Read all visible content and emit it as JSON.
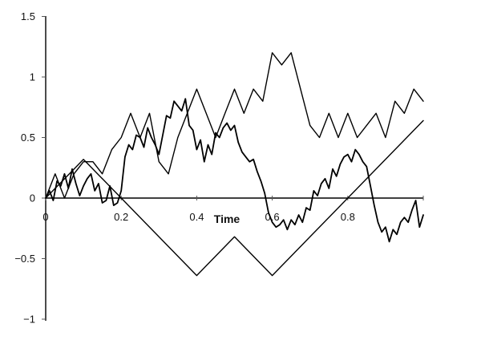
{
  "chart_data": {
    "type": "line",
    "xlabel": "Time",
    "ylabel": "",
    "xlim": [
      0,
      1
    ],
    "ylim": [
      -1,
      1.5
    ],
    "x_ticks": [
      0,
      0.2,
      0.4,
      0.6,
      0.8
    ],
    "x_tick_labels": [
      "0",
      "0.2",
      "0.4",
      "0.6",
      "0.8"
    ],
    "y_ticks": [
      1.5,
      1,
      0.5,
      0,
      -0.5,
      -1
    ],
    "y_tick_labels": [
      "1.5",
      "1",
      "0.5",
      "0",
      "−0.5",
      "−1"
    ],
    "grid": false,
    "legend": "none",
    "series": [
      {
        "style": "piecewise-linear",
        "stroke_width": 1.4,
        "x": [
          0,
          0.1,
          0.4,
          0.5,
          0.6,
          1
        ],
        "y": [
          0,
          0.32,
          -0.64,
          -0.32,
          -0.64,
          0.64
        ]
      },
      {
        "style": "piecewise-linear",
        "stroke_width": 1.4,
        "x": [
          0,
          0.025,
          0.05,
          0.075,
          0.1,
          0.125,
          0.15,
          0.175,
          0.2,
          0.225,
          0.25,
          0.275,
          0.3,
          0.325,
          0.35,
          0.375,
          0.4,
          0.425,
          0.45,
          0.475,
          0.5,
          0.525,
          0.55,
          0.575,
          0.6,
          0.625,
          0.65,
          0.675,
          0.7,
          0.725,
          0.75,
          0.775,
          0.8,
          0.825,
          0.85,
          0.875,
          0.9,
          0.925,
          0.95,
          0.975,
          1
        ],
        "y": [
          0,
          0.2,
          0,
          0.2,
          0.3,
          0.3,
          0.2,
          0.4,
          0.5,
          0.7,
          0.5,
          0.7,
          0.3,
          0.2,
          0.5,
          0.7,
          0.9,
          0.7,
          0.5,
          0.7,
          0.9,
          0.7,
          0.9,
          0.8,
          1.2,
          1.1,
          1.2,
          0.9,
          0.6,
          0.5,
          0.7,
          0.5,
          0.7,
          0.5,
          0.6,
          0.7,
          0.5,
          0.8,
          0.7,
          0.9,
          0.8
        ]
      },
      {
        "style": "rough-path",
        "stroke_width": 1.8,
        "x": [
          0,
          0.01,
          0.02,
          0.03,
          0.04,
          0.05,
          0.06,
          0.07,
          0.08,
          0.09,
          0.1,
          0.11,
          0.12,
          0.13,
          0.14,
          0.15,
          0.16,
          0.17,
          0.18,
          0.19,
          0.2,
          0.21,
          0.22,
          0.23,
          0.24,
          0.25,
          0.26,
          0.27,
          0.28,
          0.29,
          0.3,
          0.31,
          0.32,
          0.33,
          0.34,
          0.35,
          0.36,
          0.37,
          0.38,
          0.39,
          0.4,
          0.41,
          0.42,
          0.43,
          0.44,
          0.45,
          0.46,
          0.47,
          0.48,
          0.49,
          0.5,
          0.51,
          0.52,
          0.53,
          0.54,
          0.55,
          0.56,
          0.57,
          0.58,
          0.59,
          0.6,
          0.61,
          0.62,
          0.63,
          0.64,
          0.65,
          0.66,
          0.67,
          0.68,
          0.69,
          0.7,
          0.71,
          0.72,
          0.73,
          0.74,
          0.75,
          0.76,
          0.77,
          0.78,
          0.79,
          0.8,
          0.81,
          0.82,
          0.83,
          0.84,
          0.85,
          0.86,
          0.87,
          0.88,
          0.89,
          0.9,
          0.91,
          0.92,
          0.93,
          0.94,
          0.95,
          0.96,
          0.97,
          0.98,
          0.99,
          1
        ],
        "y": [
          0,
          0.06,
          -0.02,
          0.14,
          0.1,
          0.2,
          0.08,
          0.24,
          0.12,
          0.02,
          0.1,
          0.16,
          0.2,
          0.06,
          0.12,
          -0.04,
          -0.02,
          0.1,
          -0.06,
          -0.04,
          0.06,
          0.34,
          0.44,
          0.4,
          0.52,
          0.5,
          0.42,
          0.58,
          0.5,
          0.44,
          0.36,
          0.52,
          0.68,
          0.66,
          0.8,
          0.76,
          0.72,
          0.82,
          0.6,
          0.56,
          0.4,
          0.48,
          0.3,
          0.44,
          0.36,
          0.54,
          0.5,
          0.58,
          0.62,
          0.56,
          0.6,
          0.46,
          0.38,
          0.34,
          0.3,
          0.32,
          0.22,
          0.14,
          0.04,
          -0.12,
          -0.2,
          -0.24,
          -0.22,
          -0.18,
          -0.26,
          -0.18,
          -0.22,
          -0.14,
          -0.2,
          -0.08,
          -0.1,
          0.06,
          0.02,
          0.12,
          0.16,
          0.08,
          0.24,
          0.18,
          0.28,
          0.34,
          0.36,
          0.3,
          0.4,
          0.36,
          0.3,
          0.26,
          0.1,
          -0.06,
          -0.2,
          -0.28,
          -0.24,
          -0.36,
          -0.26,
          -0.3,
          -0.2,
          -0.16,
          -0.2,
          -0.1,
          -0.02,
          -0.24,
          -0.14
        ]
      }
    ]
  }
}
